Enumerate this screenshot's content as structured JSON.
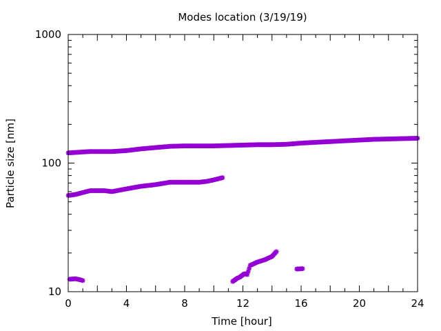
{
  "chart_data": {
    "type": "scatter",
    "title": "Modes location (3/19/19)",
    "xlabel": "Time [hour]",
    "ylabel": "Particle size [nm]",
    "xlim": [
      0,
      24
    ],
    "ylim": [
      10,
      1000
    ],
    "yscale": "log",
    "xticks": [
      0,
      4,
      8,
      12,
      16,
      20,
      24
    ],
    "xtick_labels": [
      "0",
      "4",
      "8",
      "12",
      "16",
      "20",
      "24"
    ],
    "yticks": [
      10,
      100,
      1000
    ],
    "ytick_labels": [
      "10",
      "100",
      "1000"
    ],
    "grid": false,
    "legend": "none",
    "marker_color": "#9400d3",
    "series": [
      {
        "points": [
          [
            0,
            120
          ],
          [
            0.5,
            121
          ],
          [
            1,
            122
          ],
          [
            1.5,
            123
          ],
          [
            2,
            123
          ],
          [
            3,
            123
          ],
          [
            4,
            125
          ],
          [
            5,
            129
          ],
          [
            6,
            132
          ],
          [
            7,
            135
          ],
          [
            8,
            136
          ],
          [
            9,
            136
          ],
          [
            10,
            136
          ],
          [
            11,
            137
          ],
          [
            12,
            138
          ],
          [
            13,
            139
          ],
          [
            14,
            139
          ],
          [
            15,
            140
          ],
          [
            16,
            143
          ],
          [
            17,
            145
          ],
          [
            18,
            147
          ],
          [
            19,
            149
          ],
          [
            20,
            151
          ],
          [
            21,
            153
          ],
          [
            22,
            154
          ],
          [
            23,
            155
          ],
          [
            24,
            156
          ]
        ]
      },
      {
        "points": [
          [
            0,
            56
          ],
          [
            0.5,
            57
          ],
          [
            1,
            59
          ],
          [
            1.5,
            61
          ],
          [
            2,
            61
          ],
          [
            2.5,
            61
          ],
          [
            3,
            60
          ],
          [
            4,
            63
          ],
          [
            5,
            66
          ],
          [
            6,
            68
          ],
          [
            7,
            71
          ],
          [
            8,
            71
          ],
          [
            9,
            71
          ],
          [
            9.5,
            72
          ],
          [
            10,
            74
          ],
          [
            10.6,
            77
          ]
        ]
      },
      {
        "points": [
          [
            0.1,
            12.5
          ],
          [
            0.5,
            12.6
          ],
          [
            0.8,
            12.4
          ],
          [
            1.0,
            12.2
          ]
        ]
      },
      {
        "points": [
          [
            11.3,
            12.0
          ],
          [
            11.6,
            12.7
          ],
          [
            11.8,
            13.0
          ],
          [
            12.1,
            13.8
          ],
          [
            12.3,
            13.6
          ],
          [
            12.5,
            16.0
          ],
          [
            13,
            17.0
          ],
          [
            13.5,
            17.7
          ],
          [
            14,
            18.8
          ],
          [
            14.3,
            20.5
          ]
        ]
      },
      {
        "points": [
          [
            15.7,
            15.0
          ],
          [
            16.1,
            15.1
          ]
        ]
      }
    ]
  }
}
